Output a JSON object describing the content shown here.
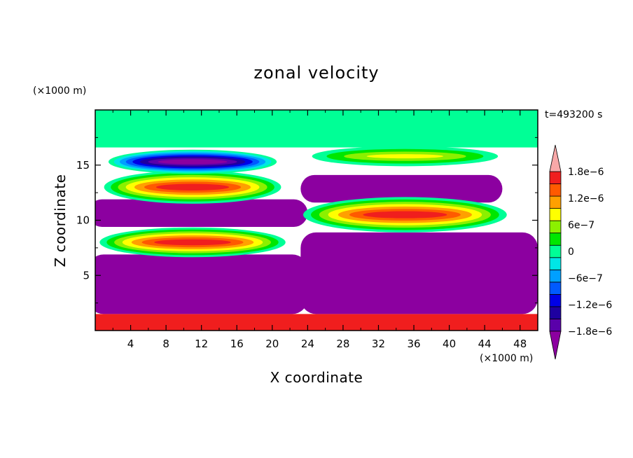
{
  "chart_data": {
    "type": "heatmap",
    "title": "zonal velocity",
    "time_label": "t=493200 s",
    "xlabel": "X coordinate",
    "ylabel": "Z coordinate",
    "x_unit": "(×1000 m)",
    "y_unit": "(×1000 m)",
    "xlim": [
      0,
      50
    ],
    "ylim": [
      0,
      20
    ],
    "xticks": [
      4,
      8,
      12,
      16,
      20,
      24,
      28,
      32,
      36,
      40,
      44,
      48
    ],
    "xtick_labels": [
      "4",
      "8",
      "12",
      "16",
      "20",
      "24",
      "28",
      "32",
      "36",
      "40",
      "44",
      "48"
    ],
    "yticks": [
      5,
      10,
      15
    ],
    "ytick_labels": [
      "5",
      "10",
      "15"
    ],
    "colorbar": {
      "min": -2.1e-06,
      "max": 2.1e-06,
      "levels": [
        -1.8e-06,
        -1.5e-06,
        -1.2e-06,
        -9e-07,
        -6e-07,
        -3e-07,
        0,
        3e-07,
        6e-07,
        9e-07,
        1.2e-06,
        1.5e-06,
        1.8e-06
      ],
      "tick_values": [
        1.8e-06,
        1.2e-06,
        6e-07,
        0,
        -6e-07,
        -1.2e-06,
        -1.8e-06
      ],
      "tick_labels": [
        "1.8e−6",
        "1.2e−6",
        "6e−7",
        "0",
        "−6e−7",
        "−1.2e−6",
        "−1.8e−6"
      ],
      "colors": [
        "#8c00a0",
        "#5a00aa",
        "#1e00a0",
        "#0000e6",
        "#005aff",
        "#00a0ff",
        "#00e6e6",
        "#00ff96",
        "#00e600",
        "#8cf000",
        "#ffff00",
        "#ffa000",
        "#ff5a00",
        "#f01e1e",
        "#f8a8a8"
      ]
    },
    "regions": [
      {
        "type": "rect",
        "x": [
          0,
          50
        ],
        "z": [
          16.6,
          20
        ],
        "value": 1e-07
      },
      {
        "type": "rect",
        "x": [
          0,
          50
        ],
        "z": [
          0,
          1.5
        ],
        "value": 2.5e-06
      },
      {
        "type": "cell",
        "x": [
          0,
          24
        ],
        "z": [
          1.5,
          6.9
        ],
        "value": -2.5e-06
      },
      {
        "type": "cell",
        "x": [
          24,
          50
        ],
        "z": [
          1.5,
          8.9
        ],
        "value": -2.5e-06
      },
      {
        "type": "cell",
        "x": [
          0,
          24
        ],
        "z": [
          9.4,
          11.9
        ],
        "value": -2.5e-06
      },
      {
        "type": "cell",
        "x": [
          24,
          46
        ],
        "z": [
          11.6,
          14.1
        ],
        "value": -2.4e-06
      },
      {
        "type": "blob",
        "cx": 11,
        "cz": 8.0,
        "rx": 10.5,
        "rz": 1.35,
        "value": 2.5e-06
      },
      {
        "type": "blob",
        "cx": 11,
        "cz": 13.0,
        "rx": 10.0,
        "rz": 1.5,
        "value": 1.9e-06
      },
      {
        "type": "blob",
        "cx": 11,
        "cz": 15.3,
        "rx": 9.5,
        "rz": 1.1,
        "value": -2e-06
      },
      {
        "type": "blob",
        "cx": 35,
        "cz": 10.5,
        "rx": 11.5,
        "rz": 1.6,
        "value": 2.5e-06
      },
      {
        "type": "blob",
        "cx": 35,
        "cz": 15.8,
        "rx": 10.5,
        "rz": 0.9,
        "value": 1.1e-06
      }
    ]
  }
}
